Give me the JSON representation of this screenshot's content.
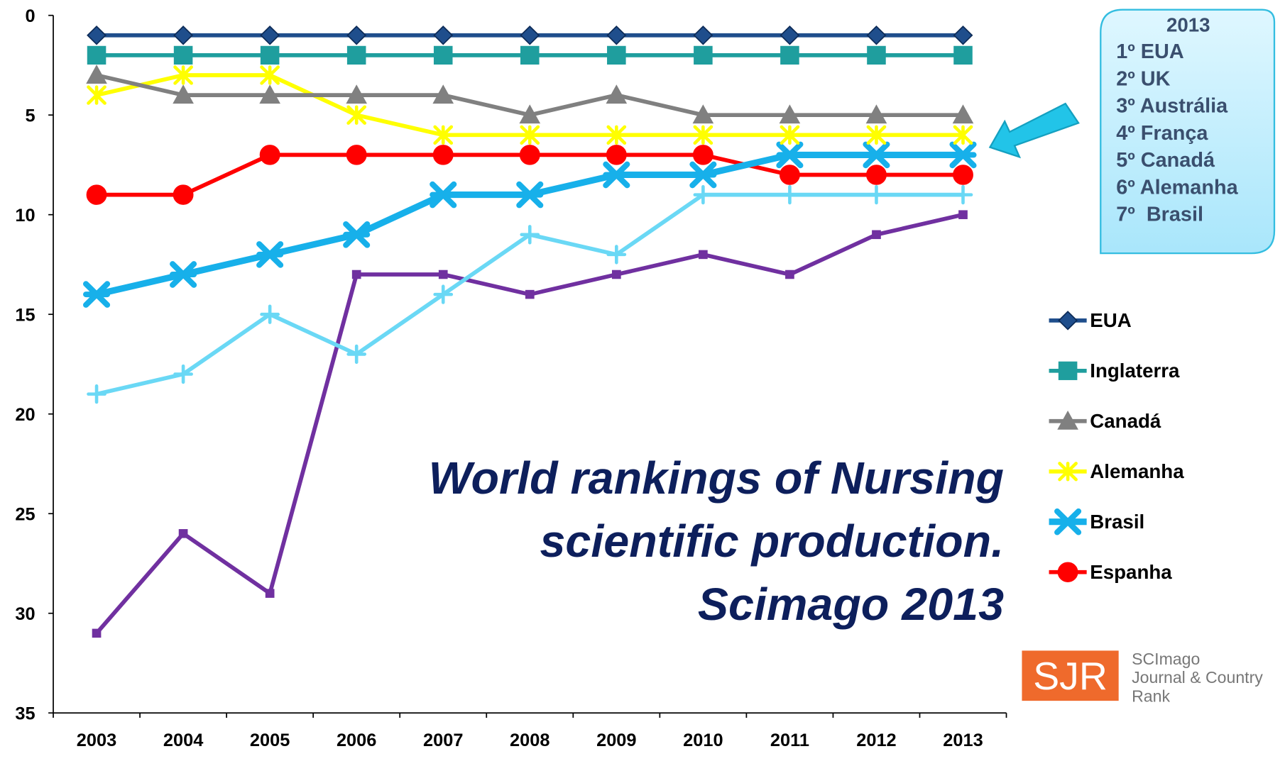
{
  "chart_data": {
    "type": "line",
    "title_lines": [
      "World rankings of Nursing",
      "scientific production.",
      "Scimago 2013"
    ],
    "categories": [
      "2003",
      "2004",
      "2005",
      "2006",
      "2007",
      "2008",
      "2009",
      "2010",
      "2011",
      "2012",
      "2013"
    ],
    "ylim": [
      0,
      35
    ],
    "yticks": [
      0,
      5,
      10,
      15,
      20,
      25,
      30,
      35
    ],
    "inverted_y": true,
    "series": [
      {
        "name": "EUA",
        "color": "#1f4e8c",
        "marker": "diamond",
        "values": [
          1,
          1,
          1,
          1,
          1,
          1,
          1,
          1,
          1,
          1,
          1
        ]
      },
      {
        "name": "Inglaterra",
        "color": "#1f9e9e",
        "marker": "square",
        "values": [
          2,
          2,
          2,
          2,
          2,
          2,
          2,
          2,
          2,
          2,
          2
        ]
      },
      {
        "name": "Canadá",
        "color": "#808080",
        "marker": "triangle",
        "values": [
          3,
          4,
          4,
          4,
          4,
          5,
          4,
          5,
          5,
          5,
          5
        ]
      },
      {
        "name": "Alemanha",
        "color": "#ffff00",
        "marker": "x",
        "values": [
          4,
          3,
          3,
          5,
          6,
          6,
          6,
          6,
          6,
          6,
          6
        ]
      },
      {
        "name": "Brasil",
        "color": "#17b0ea",
        "marker": "star",
        "thick": true,
        "values": [
          14,
          13,
          12,
          11,
          9,
          9,
          8,
          8,
          7,
          7,
          7
        ]
      },
      {
        "name": "Espanha",
        "color": "#ff0000",
        "marker": "circle",
        "values": [
          9,
          9,
          7,
          7,
          7,
          7,
          7,
          7,
          8,
          8,
          8
        ]
      },
      {
        "color": "#6ad8f5",
        "marker": "plus",
        "values": [
          19,
          18,
          15,
          17,
          14,
          11,
          12,
          9,
          9,
          9,
          9
        ]
      },
      {
        "color": "#7030a0",
        "marker": "smallsquare",
        "values": [
          31,
          26,
          29,
          13,
          13,
          14,
          13,
          12,
          13,
          11,
          10
        ]
      }
    ],
    "callout": {
      "title": "2013",
      "items": [
        "1º EUA",
        "2º UK",
        "3º Austrália",
        "4º França",
        "5º Canadá",
        "6º Alemanha",
        "7º  Brasil"
      ]
    },
    "logo": {
      "mark": "SJR",
      "lines": [
        "SCImago",
        "Journal & Country",
        "Rank"
      ]
    }
  }
}
